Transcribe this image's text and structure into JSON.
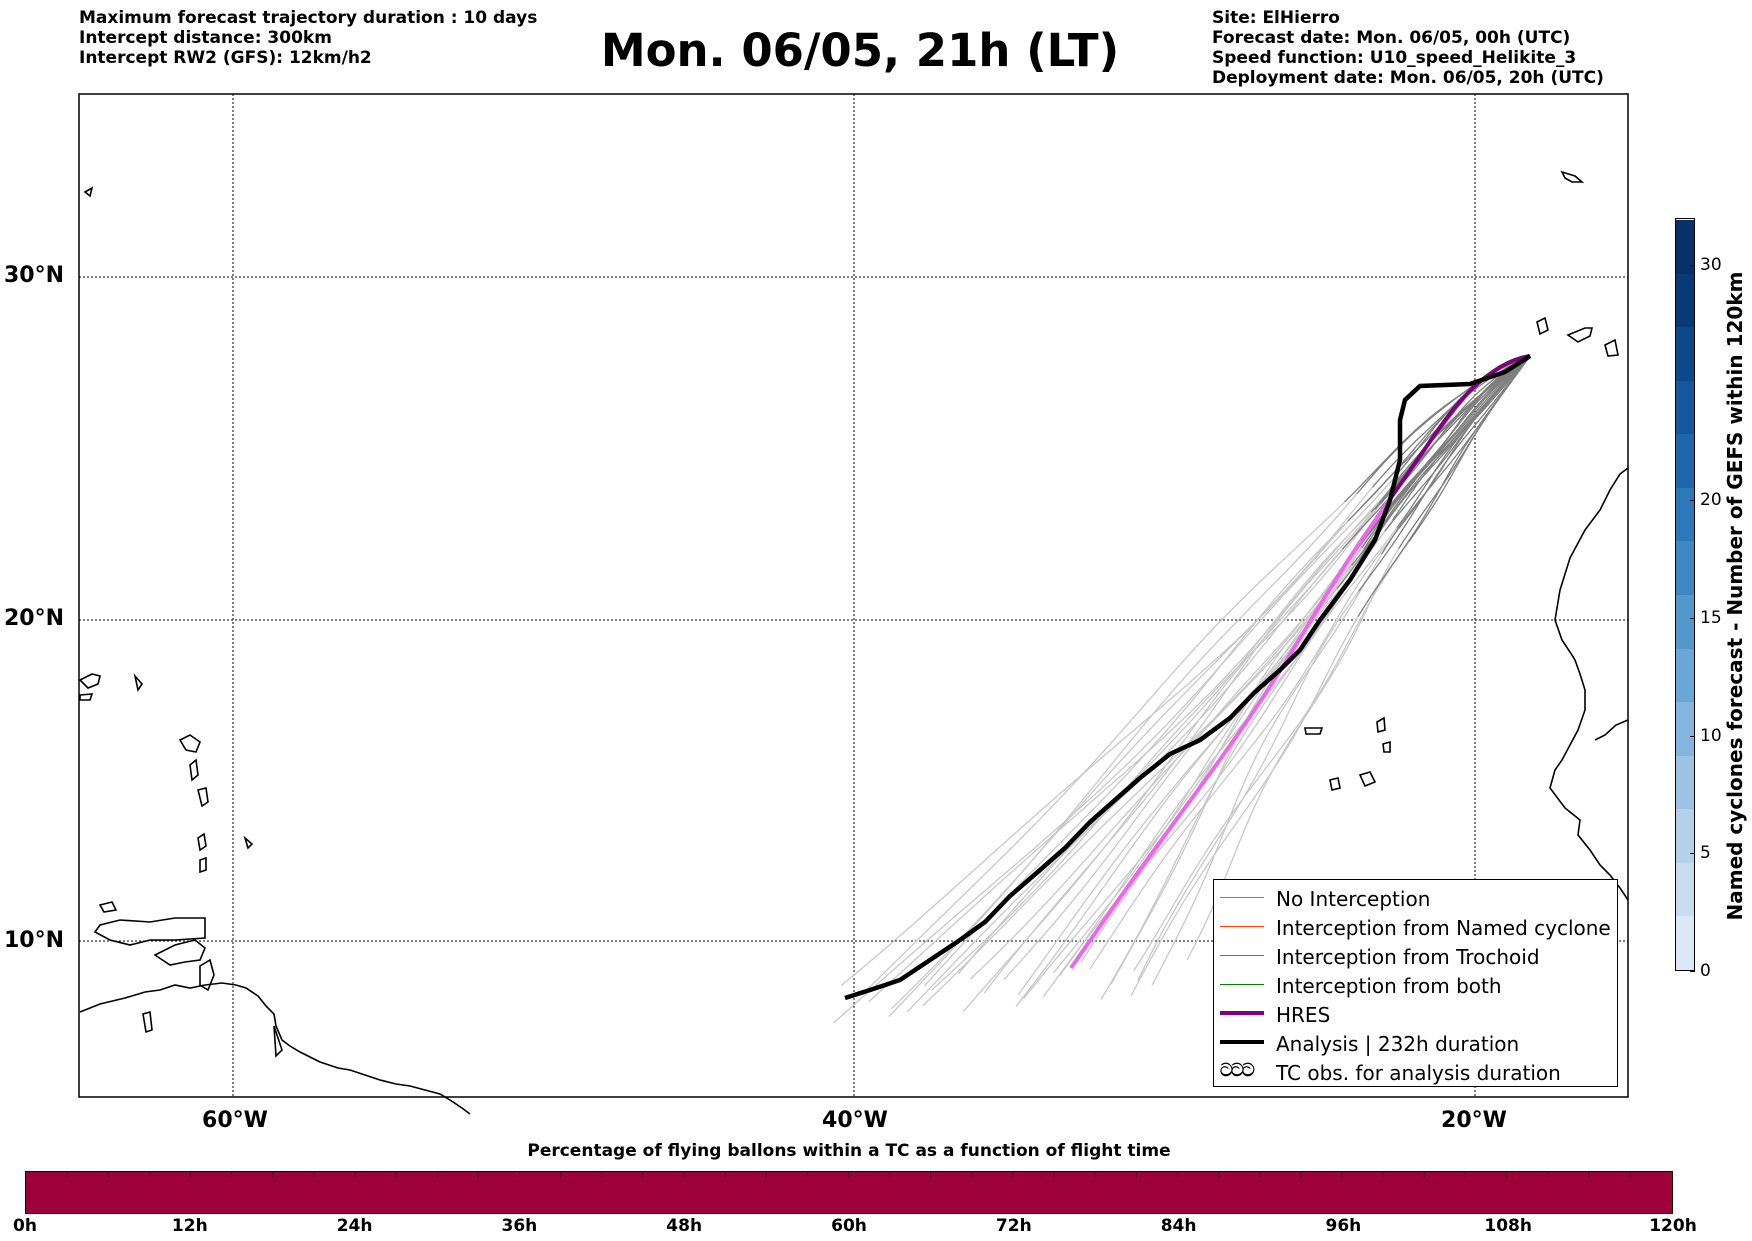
{
  "header": {
    "left_lines": [
      "Maximum forecast trajectory duration : 10 days",
      "Intercept distance: 300km",
      "Intercept RW2 (GFS):  12km/h2"
    ],
    "title": "Mon. 06/05, 21h (LT)",
    "right_lines": [
      "Site: ElHierro",
      "Forecast date: Mon. 06/05, 00h (UTC)",
      "Speed function: U10_speed_Helikite_3",
      "Deployment date: Mon. 06/05, 20h (UTC)"
    ]
  },
  "map": {
    "lat_labels": [
      {
        "lat": 30,
        "text": "30°N"
      },
      {
        "lat": 20,
        "text": "20°N"
      },
      {
        "lat": 10,
        "text": "10°N"
      }
    ],
    "lon_labels": [
      {
        "lon": -60,
        "text": "60°W"
      },
      {
        "lon": -40,
        "text": "40°W"
      },
      {
        "lon": -20,
        "text": "20°W"
      }
    ],
    "lon_range": [
      -65,
      -15
    ],
    "lat_range": [
      5.3,
      34.6
    ],
    "colors": {
      "no_interception": "#7f7f7f",
      "no_interception_light": "#c8c8c8",
      "named_cyclone": "#ff4500",
      "trochoid": "#808000",
      "both": "#008000",
      "hres": "#800080",
      "hres_light": "#ee66ee",
      "analysis": "#000000"
    }
  },
  "legend": {
    "items": [
      {
        "label": "No Interception",
        "color": "#7f7f7f",
        "width": 1.5
      },
      {
        "label": "Interception from Named cyclone",
        "color": "#ff4500",
        "width": 1.5
      },
      {
        "label": "Interception from Trochoid",
        "color": "#808000",
        "width": 1.5
      },
      {
        "label": "Interception from both",
        "color": "#008000",
        "width": 1.5
      },
      {
        "label": "HRES",
        "color": "#800080",
        "width": 4
      },
      {
        "label": "Analysis | 232h duration",
        "color": "#000000",
        "width": 4
      }
    ],
    "symbol_item": {
      "symbol": "ටටට",
      "label": "TC obs. for analysis duration"
    }
  },
  "colorbar_vertical": {
    "label": "Named cyclones forecast - Number of GEFS within 120km",
    "min": 0,
    "max": 32,
    "ticks": [
      {
        "value": 0,
        "text": "0"
      },
      {
        "value": 5,
        "text": "5"
      },
      {
        "value": 10,
        "text": "10"
      },
      {
        "value": 15,
        "text": "15"
      },
      {
        "value": 20,
        "text": "20"
      },
      {
        "value": 30,
        "text": "30"
      }
    ]
  },
  "colorbar_horizontal": {
    "title": "Percentage of flying ballons within a TC as a function of flight time",
    "color": "#9e003a",
    "ticks": [
      "0h",
      "12h",
      "24h",
      "36h",
      "48h",
      "60h",
      "72h",
      "84h",
      "96h",
      "108h",
      "120h"
    ]
  }
}
